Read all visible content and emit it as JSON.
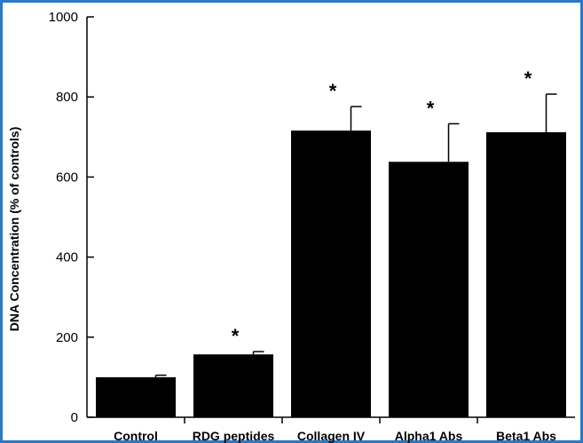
{
  "chart_data": {
    "type": "bar",
    "title": "",
    "xlabel": "",
    "ylabel": "DNA Concentration (% of controls)",
    "ylim": [
      0,
      1000
    ],
    "yticks": [
      0,
      200,
      400,
      600,
      800,
      1000
    ],
    "categories": [
      "Control",
      "RDG peptides",
      "Collagen IV",
      "Alpha1 Abs",
      "Beta1 Abs"
    ],
    "values": [
      100,
      157,
      716,
      638,
      712
    ],
    "errors": [
      5,
      7,
      60,
      95,
      95
    ],
    "annotations": [
      "",
      "*",
      "*",
      "*",
      "*"
    ],
    "bar_color": "#000000",
    "grid": false
  }
}
